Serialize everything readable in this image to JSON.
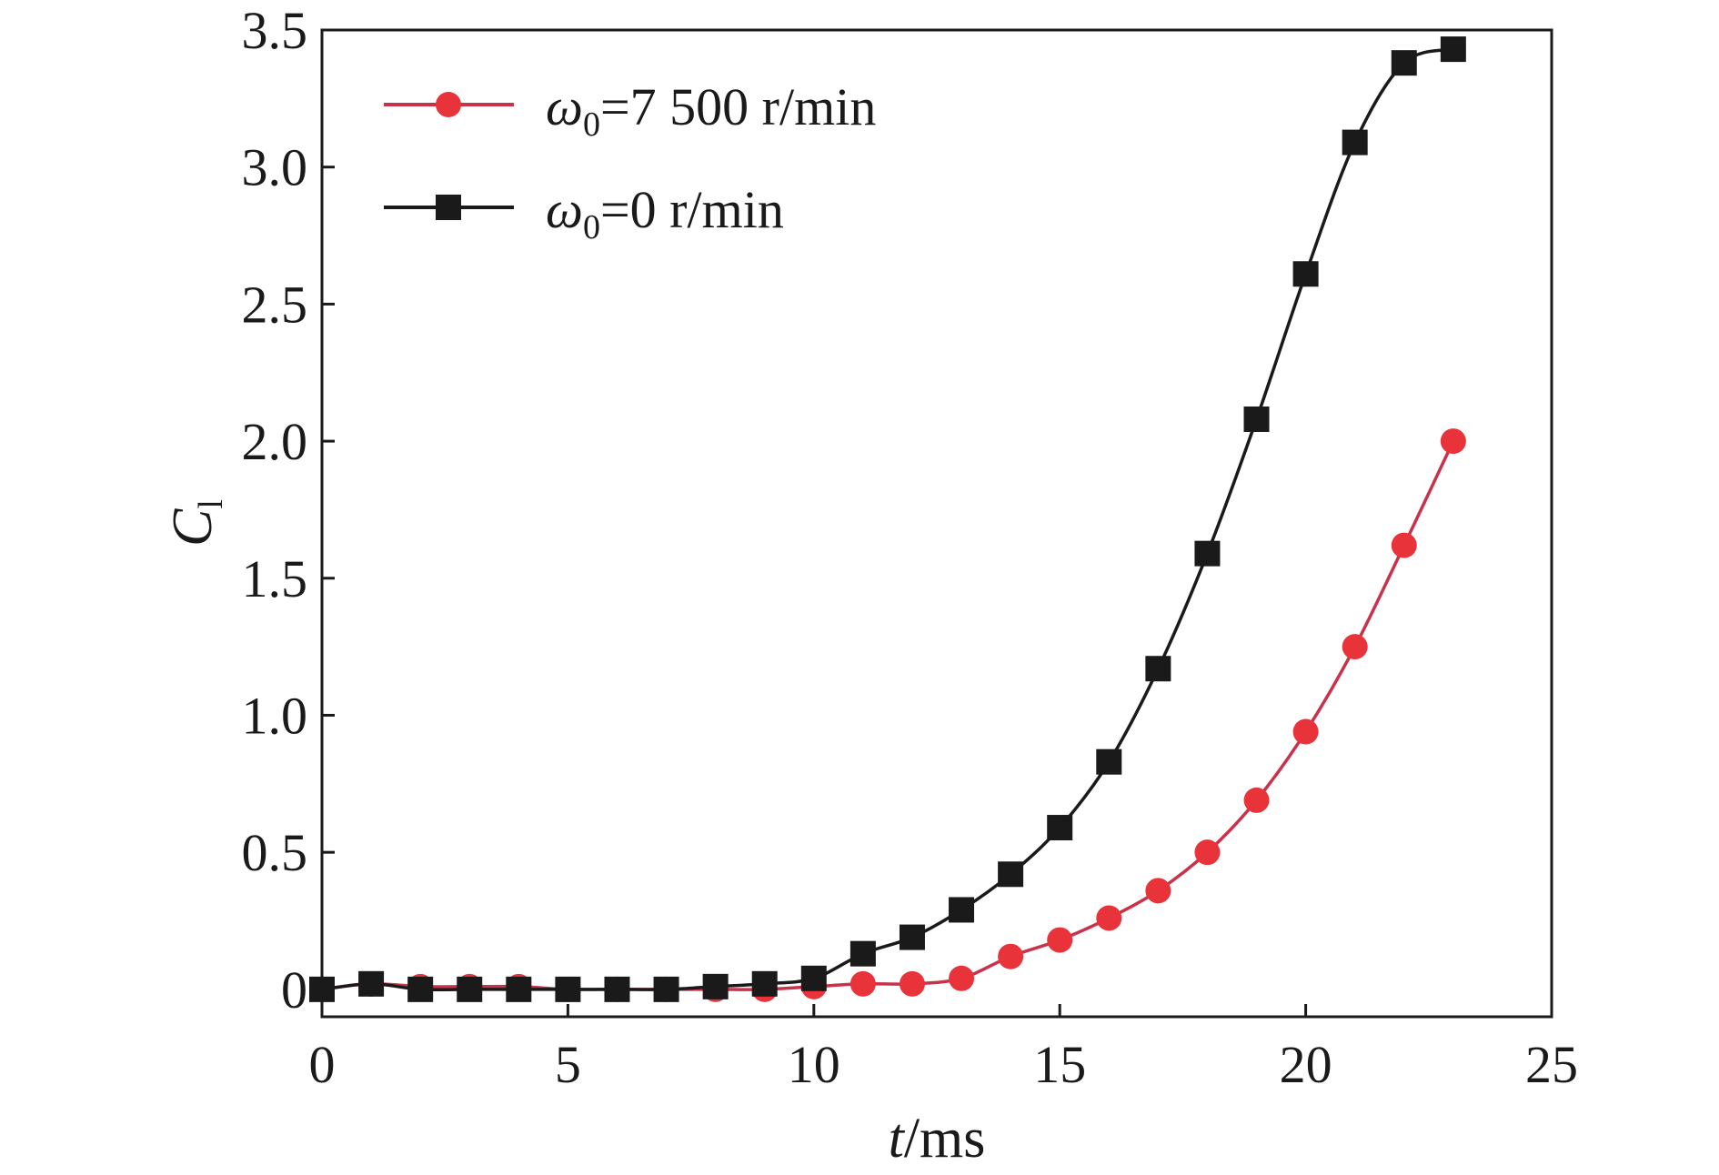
{
  "chart_data": {
    "type": "line",
    "xlabel": {
      "italic": "t",
      "rest": "/ms"
    },
    "ylabel": {
      "main": "C",
      "sub": "l"
    },
    "xlim": [
      0,
      25
    ],
    "ylim": [
      -0.1,
      3.5
    ],
    "xticks": [
      0,
      5,
      10,
      15,
      20,
      25
    ],
    "xtick_labels": [
      "0",
      "5",
      "10",
      "15",
      "20",
      "25"
    ],
    "yticks": [
      0,
      0.5,
      1.0,
      1.5,
      2.0,
      2.5,
      3.0,
      3.5
    ],
    "ytick_labels": [
      "0",
      "0.5",
      "1.0",
      "1.5",
      "2.0",
      "2.5",
      "3.0",
      "3.5"
    ],
    "grid": false,
    "legend_position": "top-left",
    "series": [
      {
        "name": "ω0=7 500 r/min",
        "legend": {
          "omega": "ω",
          "sub": "0",
          "rest": "=7 500 r/min"
        },
        "color": "#e8333b",
        "line_color": "#c8324a",
        "marker": "circle",
        "x": [
          0,
          1,
          2,
          3,
          4,
          5,
          6,
          7,
          8,
          9,
          10,
          11,
          12,
          13,
          14,
          15,
          16,
          17,
          18,
          19,
          20,
          21,
          22,
          23
        ],
        "y": [
          0.0,
          0.02,
          0.01,
          0.01,
          0.01,
          0.0,
          0.0,
          0.0,
          0.0,
          0.0,
          0.01,
          0.02,
          0.02,
          0.04,
          0.12,
          0.18,
          0.26,
          0.36,
          0.5,
          0.69,
          0.94,
          1.25,
          1.62,
          2.0
        ]
      },
      {
        "name": "ω0=0 r/min",
        "legend": {
          "omega": "ω",
          "sub": "0",
          "rest": "=0 r/min"
        },
        "color": "#1a1a1a",
        "line_color": "#1a1a1a",
        "marker": "square",
        "x": [
          0,
          1,
          2,
          3,
          4,
          5,
          6,
          7,
          8,
          9,
          10,
          11,
          12,
          13,
          14,
          15,
          16,
          17,
          18,
          19,
          20,
          21,
          22,
          23
        ],
        "y": [
          0.0,
          0.02,
          0.0,
          0.0,
          0.0,
          0.0,
          0.0,
          0.0,
          0.01,
          0.02,
          0.04,
          0.13,
          0.19,
          0.29,
          0.42,
          0.59,
          0.83,
          1.17,
          1.59,
          2.08,
          2.61,
          3.09,
          3.38,
          3.43
        ]
      }
    ]
  }
}
